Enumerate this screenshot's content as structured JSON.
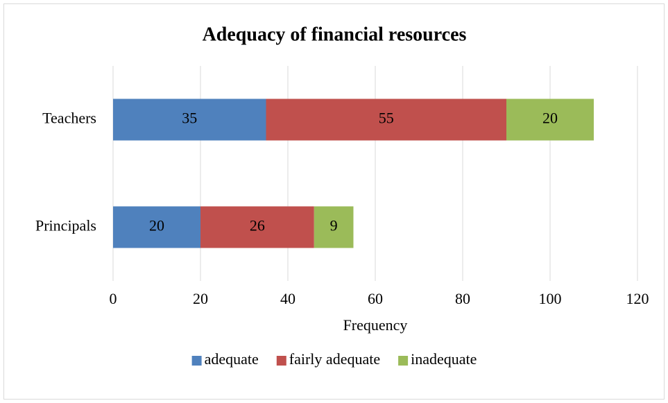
{
  "chart_data": {
    "type": "bar",
    "orientation": "horizontal",
    "stacked": true,
    "title": "Adequacy of financial resources",
    "xlabel": "Frequency",
    "categories": [
      "Teachers",
      "Principals"
    ],
    "series": [
      {
        "name": "adequate",
        "color": "#4f81bd",
        "values": [
          35,
          20
        ]
      },
      {
        "name": "fairly adequate",
        "color": "#c0504d",
        "values": [
          55,
          26
        ]
      },
      {
        "name": "inadequate",
        "color": "#9bbb59",
        "values": [
          20,
          9
        ]
      }
    ],
    "xlim": [
      0,
      120
    ],
    "xticks": [
      0,
      20,
      40,
      60,
      80,
      100,
      120
    ],
    "grid": true,
    "legend": "bottom",
    "data_labels": true
  }
}
